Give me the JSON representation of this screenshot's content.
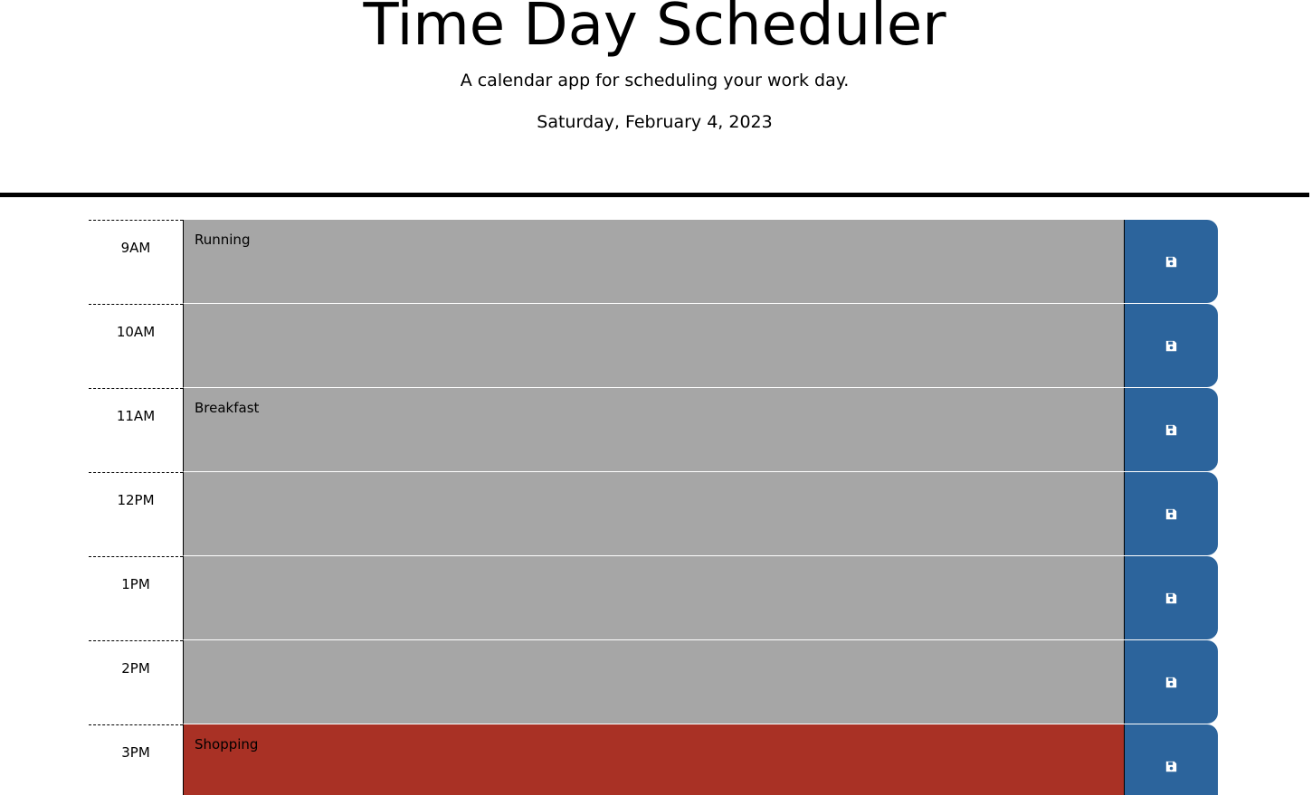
{
  "header": {
    "title": "Time Day Scheduler",
    "subtitle": "A calendar app for scheduling your work day.",
    "current_day": "Saturday, February 4, 2023"
  },
  "timeblocks": [
    {
      "hour": "9AM",
      "text": "Running",
      "state": "past"
    },
    {
      "hour": "10AM",
      "text": "",
      "state": "past"
    },
    {
      "hour": "11AM",
      "text": "Breakfast",
      "state": "past"
    },
    {
      "hour": "12PM",
      "text": "",
      "state": "past"
    },
    {
      "hour": "1PM",
      "text": "",
      "state": "past"
    },
    {
      "hour": "2PM",
      "text": "",
      "state": "past"
    },
    {
      "hour": "3PM",
      "text": "Shopping",
      "state": "present"
    }
  ],
  "save_icon": "floppy-disk-icon",
  "colors": {
    "past": "#a6a6a6",
    "present": "#a93125",
    "save_button": "#2c649c"
  }
}
